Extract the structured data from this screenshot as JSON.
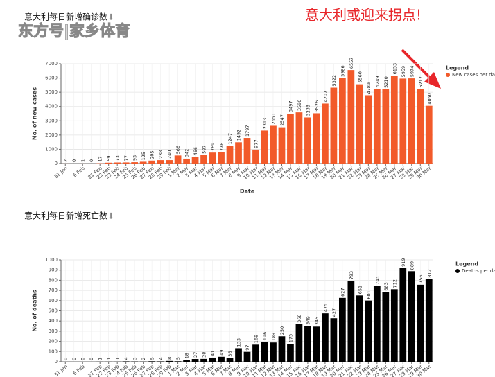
{
  "headline": "意大利或迎来拐点!",
  "watermark": "东方号|家乡体育",
  "chart_data": [
    {
      "type": "bar",
      "title": "意大利每日新增确诊数↓",
      "ylabel": "No. of new cases",
      "xlabel": "Date",
      "legend_title": "Legend",
      "legend": "right",
      "grid": true,
      "categories": [
        "31 Jan",
        null,
        "6 Feb",
        null,
        "21 Feb",
        "22 Feb",
        "23 Feb",
        "24 Feb",
        "25 Feb",
        "26 Feb",
        "27 Feb",
        "28 Feb",
        "29 Feb",
        "1 Mar",
        "2 Mar",
        "3 Mar",
        "4 Mar",
        "5 Mar",
        "6 Mar",
        "7 Mar",
        "8 Mar",
        "9 Mar",
        "10 Mar",
        "11 Mar",
        "12 Mar",
        "13 Mar",
        "14 Mar",
        "15 Mar",
        "16 Mar",
        "17 Mar",
        "18 Mar",
        "19 Mar",
        "20 Mar",
        "21 Mar",
        "22 Mar",
        "23 Mar",
        "24 Mar",
        "25 Mar",
        "26 Mar",
        "27 Mar",
        "28 Mar",
        "29 Mar",
        "30 Mar"
      ],
      "series": [
        {
          "name": "New cases per day",
          "color": "#f25a2a",
          "values": [
            2,
            0,
            1,
            0,
            17,
            59,
            73,
            77,
            93,
            125,
            205,
            238,
            240,
            566,
            342,
            466,
            587,
            769,
            778,
            1247,
            1492,
            1797,
            977,
            2313,
            2651,
            2547,
            3497,
            3590,
            3233,
            3526,
            4207,
            5322,
            5986,
            6557,
            5560,
            4789,
            5249,
            5210,
            6153,
            5959,
            5974,
            5217,
            4050
          ]
        }
      ],
      "ylim": [
        0,
        7000
      ],
      "yticks": [
        0,
        1000,
        2000,
        3000,
        4000,
        5000,
        6000,
        7000
      ]
    },
    {
      "type": "bar",
      "title": "意大利每日新增死亡数↓",
      "ylabel": "No. of deaths",
      "legend_title": "Legend",
      "legend": "right",
      "grid": true,
      "categories": [
        "31 Jan",
        null,
        "6 Feb",
        null,
        "21 Feb",
        "22 Feb",
        "23 Feb",
        "24 Feb",
        "25 Feb",
        "26 Feb",
        "27 Feb",
        "28 Feb",
        "29 Feb",
        "1 Mar",
        "2 Mar",
        "3 Mar",
        "4 Mar",
        "5 Mar",
        "6 Mar",
        "7 Mar",
        "8 Mar",
        "9 Mar",
        "10 Mar",
        "11 Mar",
        "12 Mar",
        "13 Mar",
        "14 Mar",
        "15 Mar",
        "16 Mar",
        "17 Mar",
        "18 Mar",
        "19 Mar",
        "20 Mar",
        "21 Mar",
        "22 Mar",
        "23 Mar",
        "24 Mar",
        "25 Mar",
        "26 Mar",
        "27 Mar",
        "28 Mar",
        "29 Mar",
        "30 Mar"
      ],
      "series": [
        {
          "name": "Deaths per day",
          "color": "#000000",
          "values": [
            0,
            0,
            0,
            0,
            1,
            1,
            1,
            4,
            3,
            2,
            5,
            4,
            8,
            5,
            18,
            27,
            28,
            41,
            49,
            36,
            133,
            97,
            168,
            196,
            189,
            250,
            175,
            368,
            349,
            345,
            475,
            427,
            627,
            793,
            651,
            601,
            743,
            683,
            712,
            919,
            889,
            756,
            812
          ]
        }
      ],
      "ylim": [
        0,
        1000
      ],
      "yticks": [
        0,
        100,
        200,
        300,
        400,
        500,
        600,
        700,
        800,
        900,
        1000
      ]
    }
  ]
}
